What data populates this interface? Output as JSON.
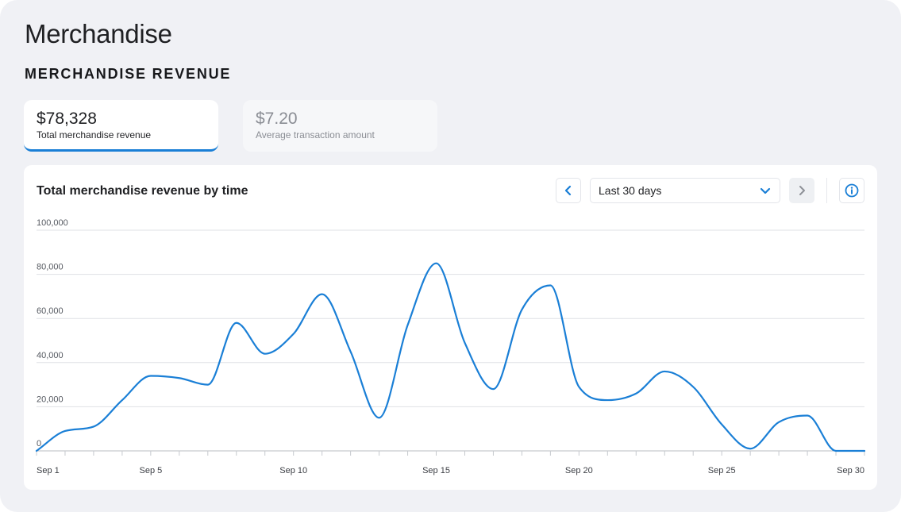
{
  "header": {
    "title": "Merchandise",
    "section_title": "MERCHANDISE REVENUE"
  },
  "kpis": [
    {
      "value": "$78,328",
      "label": "Total merchandise revenue",
      "active": true
    },
    {
      "value": "$7.20",
      "label": "Average transaction amount",
      "active": false
    }
  ],
  "card": {
    "title": "Total merchandise revenue by time",
    "range_label": "Last 30 days",
    "icons": {
      "prev": "chevron-left-icon",
      "next": "chevron-right-icon",
      "dropdown": "chevron-down-icon",
      "info": "info-icon"
    }
  },
  "colors": {
    "accent": "#1a7fd6",
    "background": "#f0f1f5",
    "card": "#ffffff"
  },
  "chart_data": {
    "type": "line",
    "title": "Total merchandise revenue by time",
    "xlabel": "",
    "ylabel": "",
    "ylim": [
      0,
      100000
    ],
    "yticks": [
      0,
      20000,
      40000,
      60000,
      80000,
      100000
    ],
    "ytick_labels": [
      "0",
      "20,000",
      "40,000",
      "60,000",
      "80,000",
      "100,000"
    ],
    "x": [
      1,
      2,
      3,
      4,
      5,
      6,
      7,
      8,
      9,
      10,
      11,
      12,
      13,
      14,
      15,
      16,
      17,
      18,
      19,
      20,
      21,
      22,
      23,
      24,
      25,
      26,
      27,
      28,
      29,
      30
    ],
    "xtick_positions": [
      1,
      5,
      10,
      15,
      20,
      25,
      30
    ],
    "xtick_labels": [
      "Sep 1",
      "Sep 5",
      "Sep 10",
      "Sep 15",
      "Sep 20",
      "Sep 25",
      "Sep 30"
    ],
    "grid": true,
    "series": [
      {
        "values": [
          0,
          9000,
          11000,
          23000,
          34000,
          33000,
          30000,
          58000,
          44000,
          53000,
          71000,
          45000,
          15000,
          57000,
          85000,
          49000,
          28000,
          64000,
          75000,
          29000,
          23000,
          26000,
          36000,
          29000,
          12000,
          1000,
          13000,
          16000,
          0,
          0
        ],
        "color": "#1a7fd6"
      }
    ]
  }
}
